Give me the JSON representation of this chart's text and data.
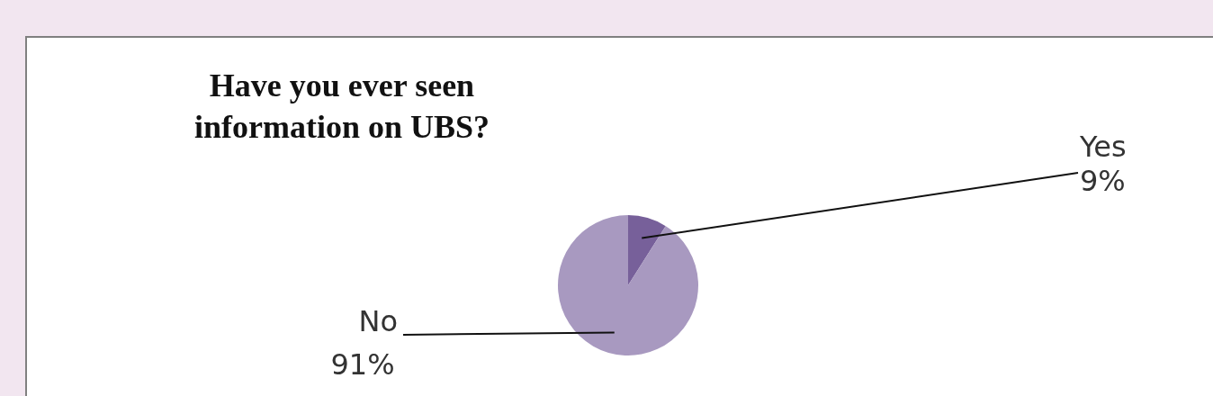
{
  "chart_data": {
    "type": "pie",
    "title": "Have you ever seen information on UBS?",
    "categories": [
      "Yes",
      "No"
    ],
    "values": [
      9,
      91
    ],
    "colors": [
      "#77609a",
      "#a899c0"
    ],
    "data_labels": true,
    "value_labels": [
      "9%",
      "91%"
    ],
    "legend": false
  }
}
